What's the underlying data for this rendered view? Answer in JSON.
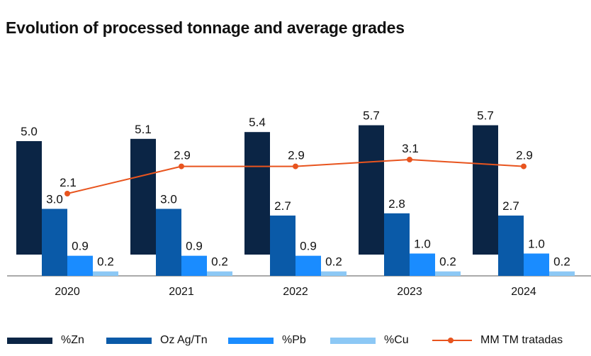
{
  "title": "Evolution of processed tonnage and average grades",
  "colors": {
    "zn": "#0b2545",
    "ag": "#0a5aa8",
    "pb": "#1a8cff",
    "cu": "#8cc8f5",
    "line": "#e8541e",
    "axis": "#555555"
  },
  "legend": [
    {
      "label": "%Zn",
      "color": "#0b2545",
      "kind": "bar"
    },
    {
      "label": "Oz Ag/Tn",
      "color": "#0a5aa8",
      "kind": "bar"
    },
    {
      "label": "%Pb",
      "color": "#1a8cff",
      "kind": "bar"
    },
    {
      "label": "%Cu",
      "color": "#8cc8f5",
      "kind": "bar"
    },
    {
      "label": "MM TM tratadas",
      "color": "#e8541e",
      "kind": "line"
    }
  ],
  "chart_data": {
    "type": "bar",
    "categories": [
      "2020",
      "2021",
      "2022",
      "2023",
      "2024"
    ],
    "series": [
      {
        "name": "%Zn",
        "values": [
          5.0,
          5.1,
          5.4,
          5.7,
          5.7
        ],
        "labels": [
          "5.0",
          "5.1",
          "5.4",
          "5.7",
          "5.7"
        ]
      },
      {
        "name": "Oz Ag/Tn",
        "values": [
          3.0,
          3.0,
          2.7,
          2.8,
          2.7
        ],
        "labels": [
          "3.0",
          "3.0",
          "2.7",
          "2.8",
          "2.7"
        ]
      },
      {
        "name": "%Pb",
        "values": [
          0.9,
          0.9,
          0.9,
          1.0,
          1.0
        ],
        "labels": [
          "0.9",
          "0.9",
          "0.9",
          "1.0",
          "1.0"
        ]
      },
      {
        "name": "%Cu",
        "values": [
          0.2,
          0.2,
          0.2,
          0.2,
          0.2
        ],
        "labels": [
          "0.2",
          "0.2",
          "0.2",
          "0.2",
          "0.2"
        ]
      }
    ],
    "line_series": {
      "name": "MM TM tratadas",
      "type": "line",
      "values": [
        2.1,
        2.9,
        2.9,
        3.1,
        2.9
      ],
      "labels": [
        "2.1",
        "2.9",
        "2.9",
        "3.1",
        "2.9"
      ]
    },
    "grid": false,
    "legend_position": "bottom"
  }
}
